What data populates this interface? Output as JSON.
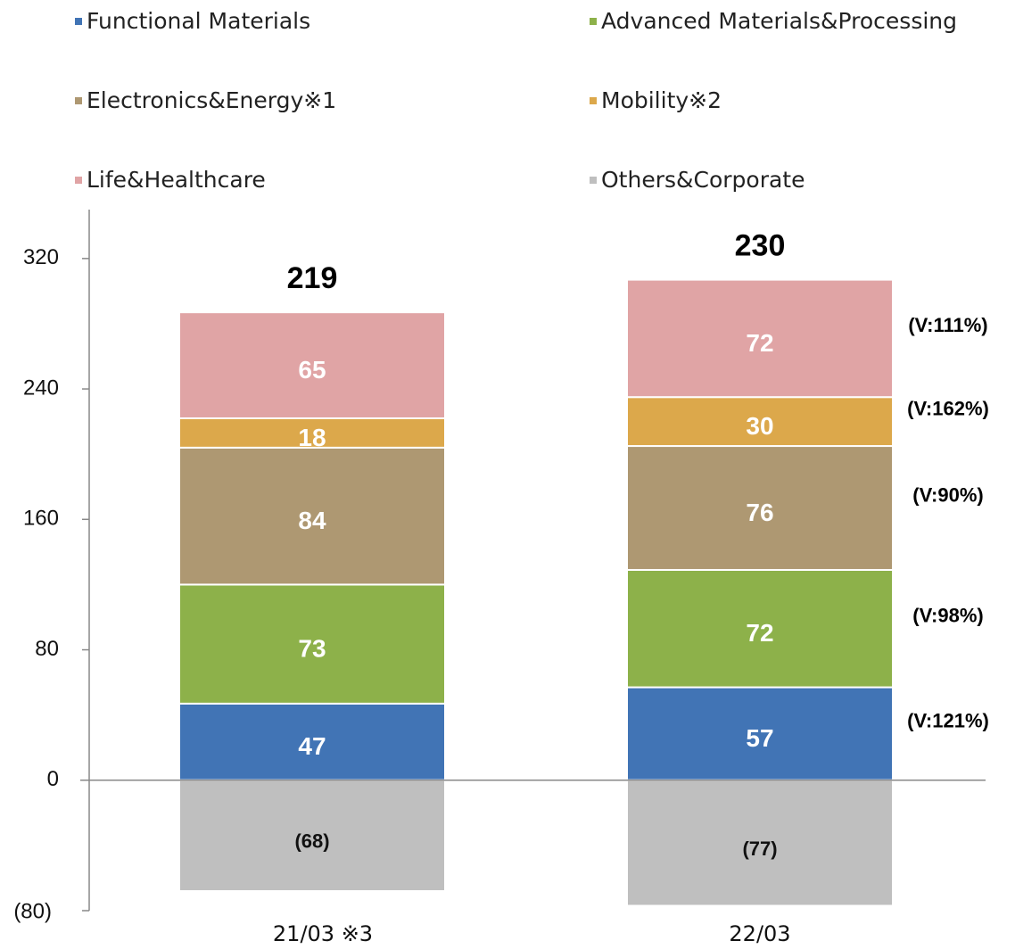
{
  "chart_data": {
    "type": "stacked_bar",
    "categories": [
      "21/03 ※3",
      "22/03"
    ],
    "series": [
      {
        "name": "Functional Materials",
        "color": "#4174b5",
        "values": [
          47,
          57
        ]
      },
      {
        "name": "Advanced Materials&Processing",
        "color": "#8db14a",
        "values": [
          73,
          72
        ]
      },
      {
        "name": "Electronics&Energy※1",
        "color": "#ae9872",
        "values": [
          84,
          76
        ]
      },
      {
        "name": "Mobility※2",
        "color": "#dca84b",
        "values": [
          18,
          30
        ]
      },
      {
        "name": "Life&Healthcare",
        "color": "#e0a4a5",
        "values": [
          65,
          72
        ]
      },
      {
        "name": "Others&Corporate",
        "color": "#bfbfbf",
        "values": [
          -68,
          -77
        ],
        "value_labels": [
          "(68)",
          "(77)"
        ]
      }
    ],
    "totals": [
      219,
      230
    ],
    "annotations": [
      "(V:121%)",
      "(V:98%)",
      "(V:90%)",
      "(V:162%)",
      "(V:111%)"
    ],
    "ylim": [
      -80,
      350
    ],
    "yticks": [
      {
        "value": -80,
        "label": "(80)"
      },
      0,
      80,
      160,
      240,
      320
    ],
    "legend": "top"
  }
}
